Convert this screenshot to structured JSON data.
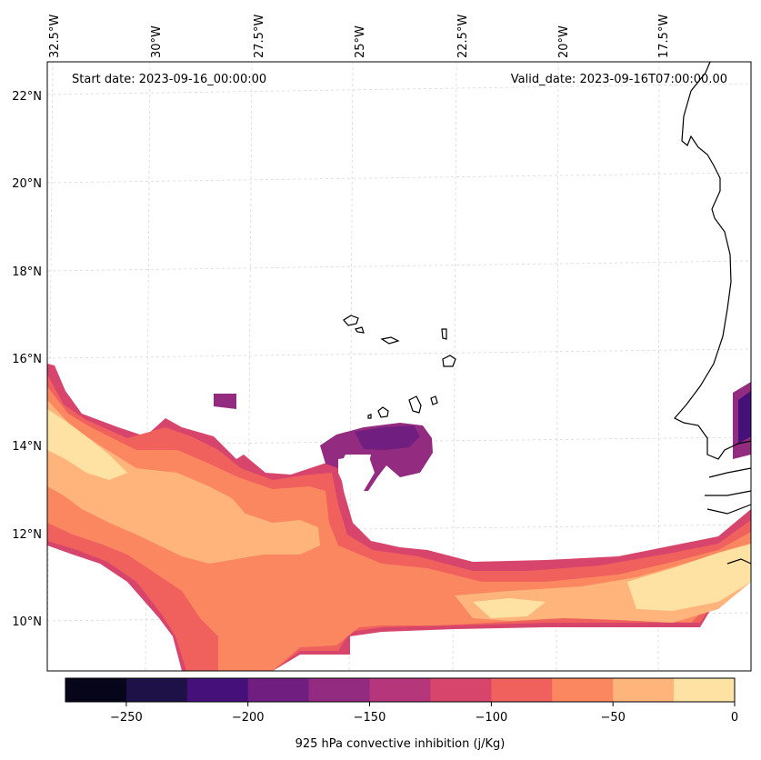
{
  "map": {
    "start_date": "Start date: 2023-09-16_00:00:00",
    "valid_date": "Valid_date: 2023-09-16T07:00:00.00",
    "lon_labels": [
      "32.5°W",
      "30°W",
      "27.5°W",
      "25°W",
      "22.5°W",
      "20°W",
      "17.5°W"
    ],
    "lat_labels": [
      "22°N",
      "20°N",
      "18°N",
      "16°N",
      "14°N",
      "12°N",
      "10°N"
    ],
    "colors": {
      "coast": "#000000",
      "grid": "#d9d9d9",
      "frame": "#000000"
    }
  },
  "colorbar": {
    "label": "925 hPa convective inhibition (j/Kg)",
    "tick_labels": [
      "−250",
      "−200",
      "−150",
      "−100",
      "−50",
      "0"
    ],
    "bins": [
      {
        "from": -275,
        "to": -250,
        "color": "#06051a"
      },
      {
        "from": -250,
        "to": -225,
        "color": "#1d1147"
      },
      {
        "from": -225,
        "to": -200,
        "color": "#45107a"
      },
      {
        "from": -200,
        "to": -175,
        "color": "#701f81"
      },
      {
        "from": -175,
        "to": -150,
        "color": "#932b80"
      },
      {
        "from": -150,
        "to": -125,
        "color": "#b5367a"
      },
      {
        "from": -125,
        "to": -100,
        "color": "#d8456c"
      },
      {
        "from": -100,
        "to": -75,
        "color": "#f0605d"
      },
      {
        "from": -75,
        "to": -50,
        "color": "#fb8761"
      },
      {
        "from": -50,
        "to": -25,
        "color": "#feb47b"
      },
      {
        "from": -25,
        "to": 0,
        "color": "#fde2a3"
      }
    ]
  }
}
